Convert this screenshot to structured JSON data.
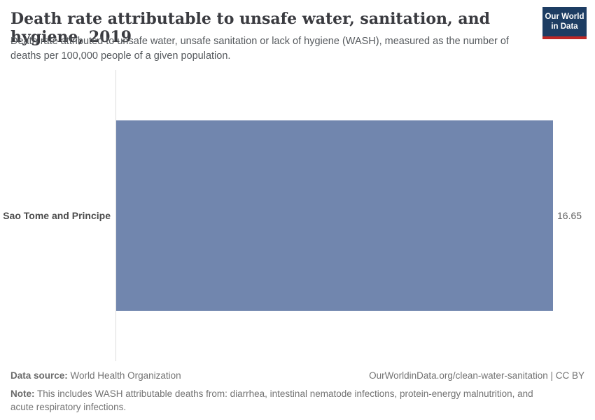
{
  "header": {
    "title": "Death rate attributable to unsafe water, sanitation, and hygiene, 2019",
    "subtitle": "Death rate attributed to unsafe water, unsafe sanitation or lack of hygiene (WASH), measured as the number of deaths per 100,000 people of a given population.",
    "logo": {
      "line1": "Our World",
      "line2": "in Data"
    }
  },
  "chart": {
    "entity_label": "Sao Tome and Principe",
    "value_label": "16.65"
  },
  "chart_data": {
    "type": "bar",
    "orientation": "horizontal",
    "title": "Death rate attributable to unsafe water, sanitation, and hygiene, 2019",
    "subtitle": "Death rate attributed to unsafe water, unsafe sanitation or lack of hygiene (WASH), measured as the number of deaths per 100,000 people of a given population.",
    "categories": [
      "Sao Tome and Principe"
    ],
    "values": [
      16.65
    ],
    "data_labels": [
      "16.65"
    ],
    "unit": "deaths per 100,000 people",
    "year": "2019",
    "xlim": [
      0,
      16.65
    ],
    "grid": false,
    "legend": "none",
    "bar_color": "#7186ae"
  },
  "colors": {
    "bar": "#7186ae",
    "axis_line": "#dcdcdc",
    "logo_bg": "#1d3d63",
    "logo_stripe": "#bf2826"
  },
  "footer": {
    "datasource_label": "Data source:",
    "datasource_value": "World Health Organization",
    "attribution": "OurWorldinData.org/clean-water-sanitation | CC BY",
    "note_label": "Note:",
    "note_value": "This includes WASH attributable deaths from: diarrhea, intestinal nematode infections, protein-energy malnutrition, and acute respiratory infections."
  }
}
